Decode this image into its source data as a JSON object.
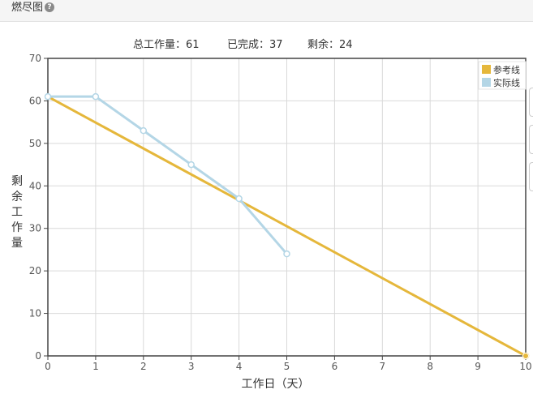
{
  "panel": {
    "title": "燃尽图",
    "help_icon": "question-circle-icon"
  },
  "summary": {
    "total": "总工作量：61",
    "done": "已完成：37",
    "remaining": "剩余：24"
  },
  "chart_data": {
    "type": "line",
    "xlabel": "工作日（天）",
    "ylabel": "剩余工作量",
    "xlim": [
      0,
      10
    ],
    "ylim": [
      0,
      70
    ],
    "x_ticks": [
      0,
      1,
      2,
      3,
      4,
      5,
      6,
      7,
      8,
      9,
      10
    ],
    "y_ticks": [
      0,
      10,
      20,
      30,
      40,
      50,
      60,
      70
    ],
    "grid": true,
    "legend_position": "top-right",
    "series": [
      {
        "name": "参考线",
        "color": "#e5b73b",
        "x": [
          0,
          10
        ],
        "y": [
          61,
          0
        ]
      },
      {
        "name": "实际线",
        "color": "#b4d6e6",
        "x": [
          0,
          1,
          2,
          3,
          4,
          5
        ],
        "y": [
          61,
          61,
          53,
          45,
          37,
          24
        ]
      }
    ]
  }
}
